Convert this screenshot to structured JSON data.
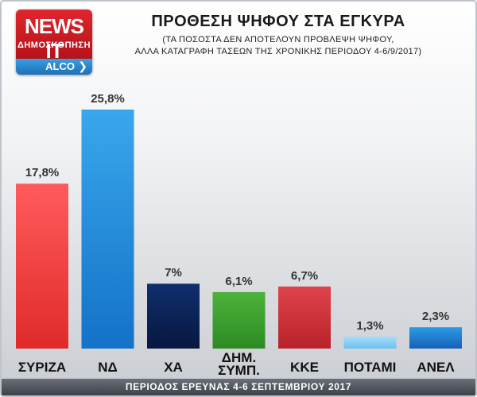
{
  "logo": {
    "brand": "NEWS IT",
    "subtitle": "ΔΗΜΟΣΚΟΠΗΣΗ",
    "pollster": "ALCO",
    "chevron_icon": "chevron-right-icon"
  },
  "header": {
    "title": "ΠΡΟΘΕΣΗ ΨΗΦΟΥ ΣΤΑ ΕΓΚΥΡΑ",
    "subtitle_line1": "(ΤΑ ΠΟΣΟΣΤΑ ΔΕΝ ΑΠΟΤΕΛΟΥΝ ΠΡΟΒΛΕΨΗ ΨΗΦΟΥ,",
    "subtitle_line2": "ΑΛΛΑ ΚΑΤΑΓΡΑΦΗ ΤΑΣΕΩΝ ΤΗΣ ΧΡΟΝΙΚΗΣ ΠΕΡΙΟΔΟΥ 4-6/9/2017)"
  },
  "footer": {
    "text": "ΠΕΡΙΟΔΟΣ ΕΡΕΥΝΑΣ 4-6 ΣΕΠΤΕΜΒΡΙΟΥ 2017"
  },
  "chart_data": {
    "type": "bar",
    "title": "ΠΡΟΘΕΣΗ ΨΗΦΟΥ ΣΤΑ ΕΓΚΥΡΑ",
    "categories": [
      "ΣΥΡΙΖΑ",
      "ΝΔ",
      "ΧΑ",
      "ΔΗΜ. ΣΥΜΠ.",
      "ΚΚΕ",
      "ΠΟΤΑΜΙ",
      "ΑΝΕΛ"
    ],
    "category_lines": [
      [
        "ΣΥΡΙΖΑ"
      ],
      [
        "ΝΔ"
      ],
      [
        "ΧΑ"
      ],
      [
        "ΔΗΜ.",
        "ΣΥΜΠ."
      ],
      [
        "ΚΚΕ"
      ],
      [
        "ΠΟΤΑΜΙ"
      ],
      [
        "ΑΝΕΛ"
      ]
    ],
    "values": [
      17.8,
      25.8,
      7,
      6.1,
      6.7,
      1.3,
      2.3
    ],
    "value_labels": [
      "17,8%",
      "25,8%",
      "7%",
      "6,1%",
      "6,7%",
      "1,3%",
      "2,3%"
    ],
    "colors": [
      [
        "#ff5b5b",
        "#e12a2a"
      ],
      [
        "#3aa7ec",
        "#1372c9"
      ],
      [
        "#0f2f6e",
        "#08173f"
      ],
      [
        "#4cb33a",
        "#2d8a22"
      ],
      [
        "#e0434b",
        "#b8222a"
      ],
      [
        "#a8dcfb",
        "#6cc0ef"
      ],
      [
        "#2b9be6",
        "#1660b8"
      ]
    ],
    "ylim": [
      0,
      25.8
    ],
    "grid": false,
    "legend": "none",
    "xlabel": "",
    "ylabel": ""
  }
}
